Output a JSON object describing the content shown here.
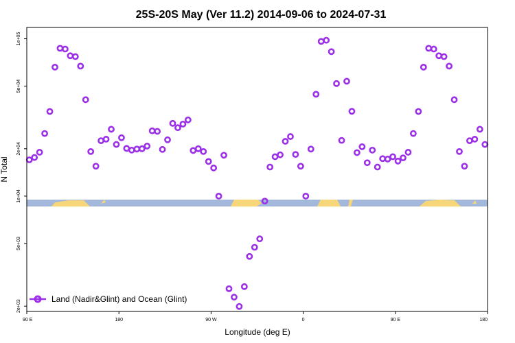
{
  "chart_data": {
    "type": "scatter",
    "title": "25S-20S May (Ver 11.2)   2014-09-06 to 2024-07-31",
    "xlabel": "Longitude (deg E)",
    "ylabel": "N Total",
    "y_scale": "log",
    "x_ticks": [
      {
        "pos": 0,
        "label": "90 E"
      },
      {
        "pos": 90,
        "label": "180"
      },
      {
        "pos": 180,
        "label": "90 W"
      },
      {
        "pos": 270,
        "label": "0"
      },
      {
        "pos": 360,
        "label": "90 E"
      },
      {
        "pos": 450,
        "label": "180"
      }
    ],
    "y_ticks": [
      {
        "value": 2000,
        "label": "2e+03"
      },
      {
        "value": 5000,
        "label": "5e+03"
      },
      {
        "value": 10000,
        "label": "1e+04"
      },
      {
        "value": 20000,
        "label": "2e+04"
      },
      {
        "value": 50000,
        "label": "5e+04"
      },
      {
        "value": 100000,
        "label": "1e+05"
      }
    ],
    "color": "#9b30e8",
    "land_color": "#f7d67a",
    "ocean_color": "#a3b8da",
    "legend": {
      "label": "Land (Nadir&Glint) and Ocean (Glint)",
      "position": "bottom-left"
    },
    "x_range": [
      0,
      450
    ],
    "y_range": [
      1850,
      118000
    ],
    "series": [
      {
        "x": [
          2.5,
          7.5,
          12.5,
          17.5,
          22.5,
          27.5,
          32.5,
          37.5,
          42.5,
          47.5,
          52.5,
          57.5,
          62.5,
          67.5,
          72.5,
          77.5,
          82.5,
          87.5,
          92.5,
          97.5,
          102.5,
          107.5,
          112.5,
          117.5,
          122.5,
          127.5,
          132.5,
          137.5,
          142.5,
          147.5,
          152.5,
          157.5,
          162.5,
          167.5,
          172.5,
          177.5,
          182.5,
          187.5,
          192.5,
          197.5,
          202.5,
          207.5,
          212.5,
          217.5,
          222.5,
          227.5,
          232.5,
          237.5,
          242.5,
          247.5,
          252.5,
          257.5,
          262.5,
          267.5,
          272.5,
          277.5,
          282.5,
          287.5,
          292.5,
          297.5,
          302.5,
          307.5,
          312.5,
          317.5,
          322.5,
          327.5,
          332.5,
          337.5,
          342.5,
          347.5,
          352.5,
          357.5,
          362.5,
          367.5,
          372.5,
          377.5,
          382.5,
          387.5,
          392.5,
          397.5,
          402.5,
          407.5,
          412.5,
          417.5,
          422.5,
          427.5,
          432.5,
          437.5,
          442.5,
          447.5
        ],
        "y": [
          17000,
          17600,
          19000,
          25000,
          34500,
          66000,
          87000,
          86000,
          78000,
          77000,
          67000,
          41000,
          19200,
          15500,
          22500,
          23000,
          26600,
          21300,
          23500,
          20100,
          19600,
          19900,
          20000,
          20800,
          26000,
          25800,
          19800,
          22800,
          29000,
          27200,
          28700,
          30500,
          19500,
          20000,
          19200,
          16600,
          15100,
          10000,
          18200,
          2580,
          2280,
          1990,
          2660,
          4140,
          4730,
          5350,
          9300,
          15300,
          17800,
          18300,
          22300,
          23900,
          18400,
          15500,
          10000,
          19900,
          44400,
          96200,
          97800,
          82800,
          51900,
          22600,
          53700,
          34600,
          18900,
          20600,
          16300,
          19600,
          15300,
          17300,
          17200,
          17800,
          16700,
          17500,
          19000,
          25000,
          34500,
          66000,
          87000,
          86000,
          78000,
          77000,
          67000,
          41000,
          19200,
          15500,
          22500,
          23000,
          26600,
          21300
        ]
      }
    ]
  }
}
